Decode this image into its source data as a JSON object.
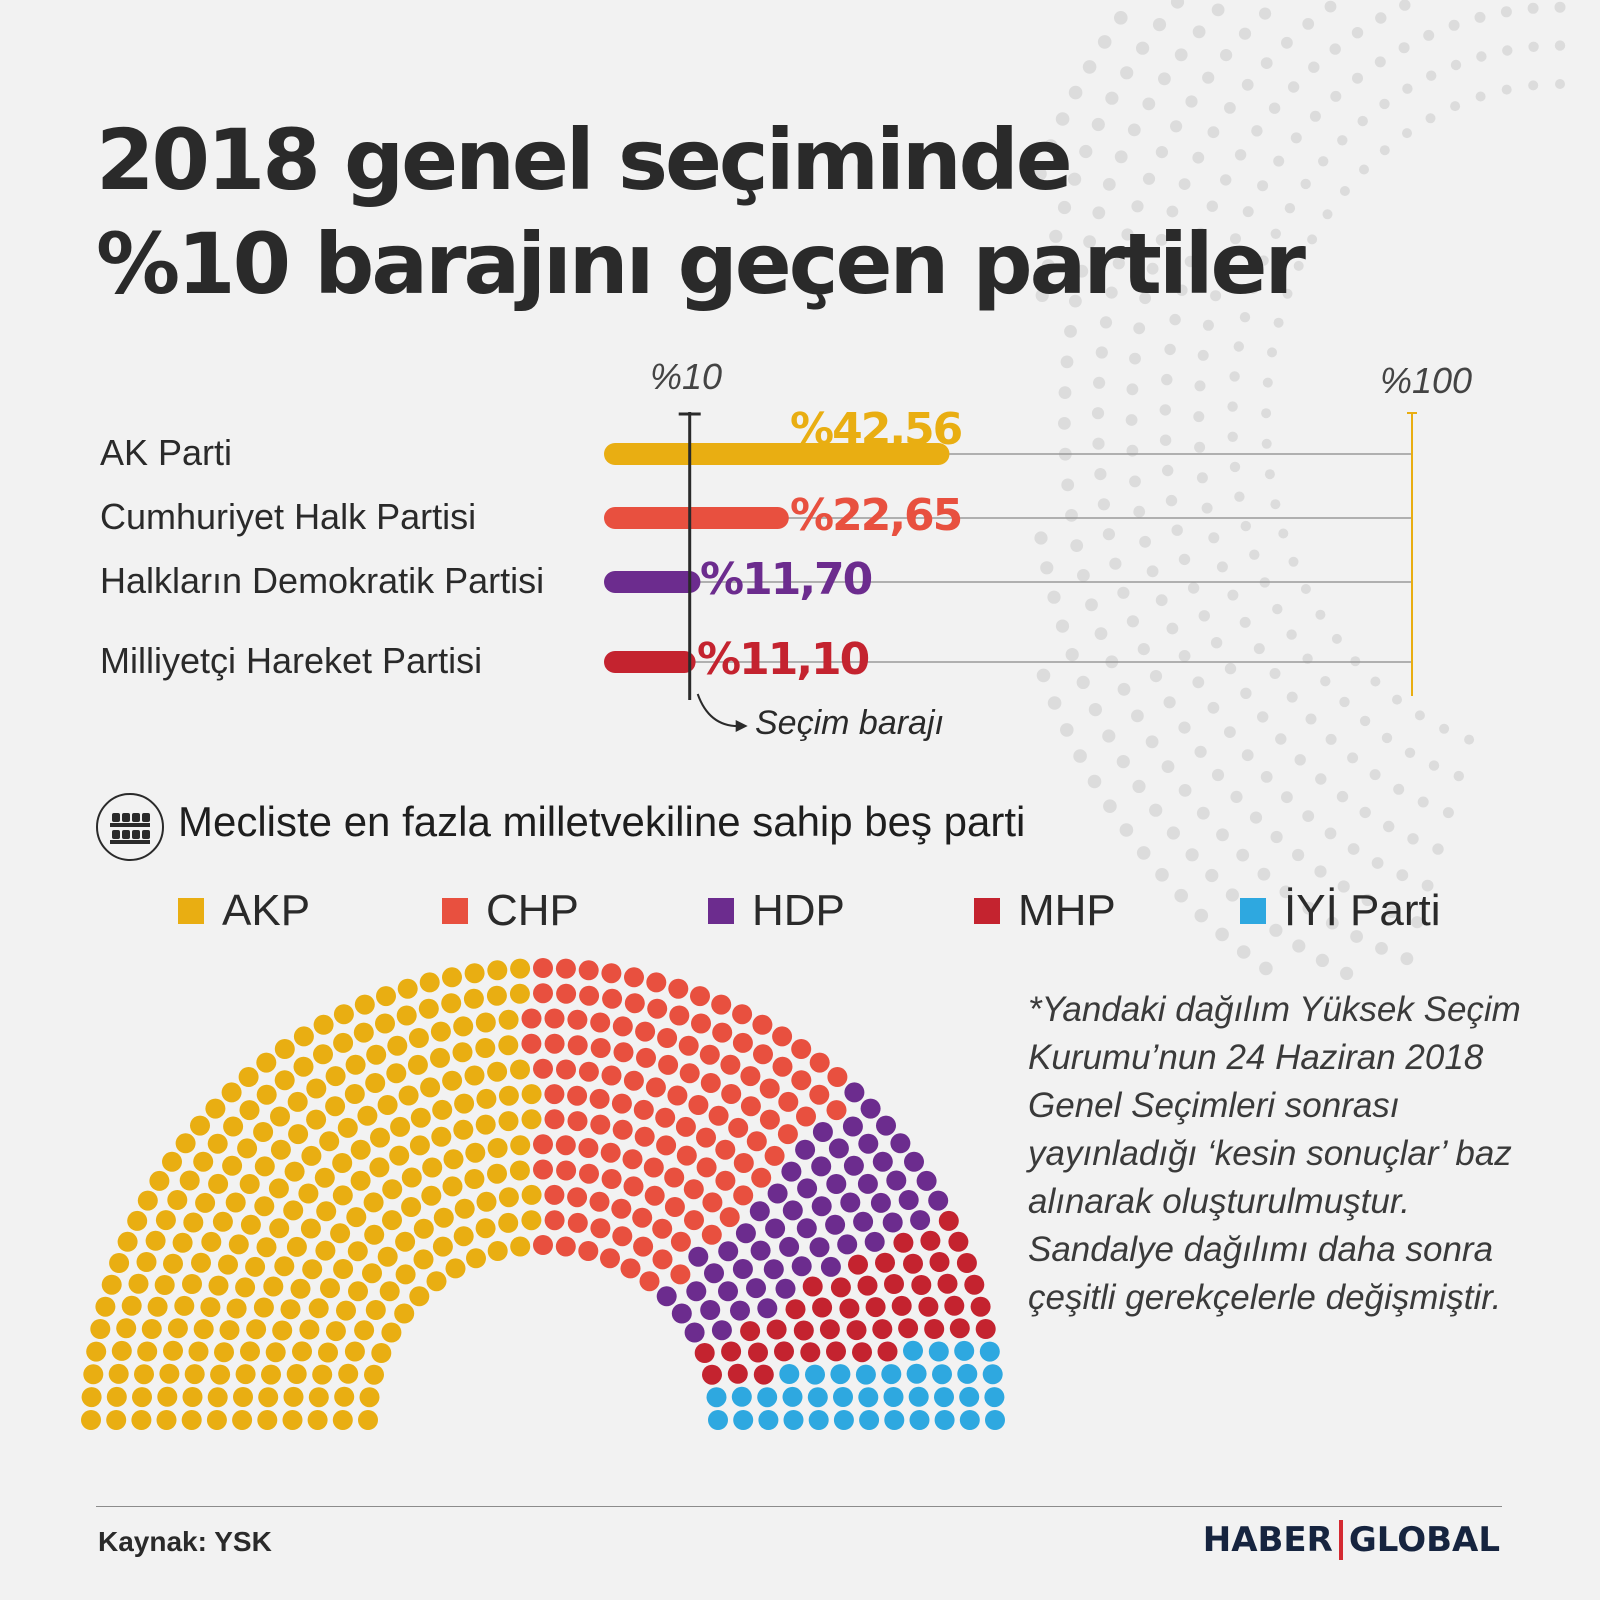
{
  "title": {
    "line1": "2018 genel seçiminde",
    "line2": "%10 barajını geçen partiler"
  },
  "chart_data": [
    {
      "type": "bar",
      "orientation": "horizontal",
      "categories": [
        "AK Parti",
        "Cumhuriyet Halk Partisi",
        "Halkların Demokratik Partisi",
        "Milliyetçi Hareket Partisi"
      ],
      "values": [
        42.56,
        22.65,
        11.7,
        11.1
      ],
      "value_labels": [
        "%42,56",
        "%22,65",
        "%11,70",
        "%11,10"
      ],
      "colors": [
        "#e9ae12",
        "#e8503f",
        "#6c2c8e",
        "#c4232f"
      ],
      "xlim": [
        0,
        100
      ],
      "tick_labels": [
        "%10",
        "%100"
      ],
      "threshold": {
        "value": 10,
        "label": "Seçim barajı"
      }
    },
    {
      "type": "hemicycle",
      "title": "Mecliste en fazla milletvekiline sahip beş parti",
      "series": [
        {
          "name": "AKP",
          "color": "#e9ae12",
          "share": 0.49
        },
        {
          "name": "CHP",
          "color": "#e8503f",
          "share": 0.245
        },
        {
          "name": "HDP",
          "color": "#6c2c8e",
          "share": 0.11
        },
        {
          "name": "MHP",
          "color": "#c4232f",
          "share": 0.085
        },
        {
          "name": "İYİ Parti",
          "color": "#2ea8e0",
          "share": 0.07
        }
      ]
    }
  ],
  "footnote": "*Yandaki dağılım Yüksek Seçim Kurumu’nun 24 Haziran 2018 Genel Seçimleri sonrası yayınladığı ‘kesin sonuçlar’ baz alınarak oluşturulmuştur. Sandalye dağılımı daha sonra çeşitli gerekçelerle değişmiştir.",
  "source": "Kaynak: YSK",
  "brand": {
    "left": "HABER",
    "right": "GLOBAL"
  },
  "icons": {
    "seat": "seats-icon"
  }
}
